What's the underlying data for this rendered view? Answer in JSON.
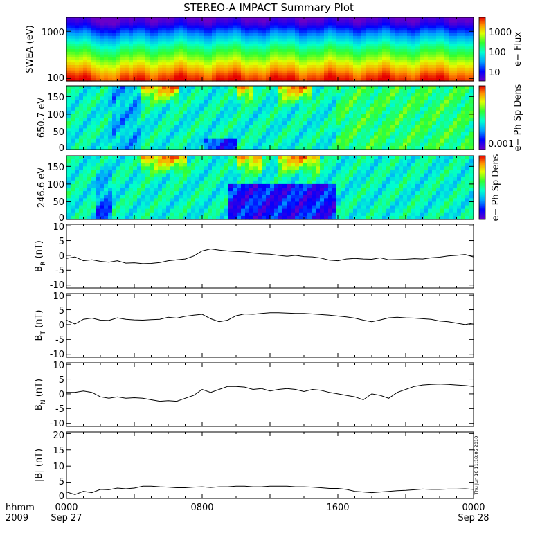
{
  "title": "STEREO-A IMPACT Summary Plot",
  "colors": {
    "background": "#ffffff",
    "axes": "#000000",
    "spectrogram_low": "#6a00c8",
    "spectrogram_high": "#e60000"
  },
  "footer": {
    "time_label": "hhmm",
    "year_label": "2009",
    "tick_labels": [
      "0000",
      "0800",
      "1600",
      "0000"
    ],
    "date_labels": [
      "Sep 27",
      "Sep 28"
    ]
  },
  "timestamp": "Thu Jun 10 11:18:05 2010",
  "panels": {
    "swea": {
      "ylabel": "SWEA (eV)",
      "y_ticks": [
        "1000",
        "100"
      ],
      "colorbar_label": "e− Flux",
      "colorbar_ticks": [
        "1000",
        "100",
        "10"
      ]
    },
    "pad650": {
      "ylabel": "650.7 eV",
      "y_ticks": [
        "150",
        "100",
        "50",
        "0"
      ],
      "colorbar_label": "e− Ph Sp Dens",
      "colorbar_ticks": [
        "0.001"
      ]
    },
    "pad246": {
      "ylabel": "246.6 eV",
      "y_ticks": [
        "150",
        "100",
        "50",
        "0"
      ],
      "colorbar_label": "e− Ph Sp Dens"
    },
    "br": {
      "ylabel_main": "B",
      "ylabel_sub": "R",
      "ylabel_unit": " (nT)",
      "y_ticks": [
        "10",
        "5",
        "0",
        "-5",
        "-10"
      ]
    },
    "bt": {
      "ylabel_main": "B",
      "ylabel_sub": "T",
      "ylabel_unit": " (nT)",
      "y_ticks": [
        "10",
        "5",
        "0",
        "-5",
        "-10"
      ]
    },
    "bn": {
      "ylabel_main": "B",
      "ylabel_sub": "N",
      "ylabel_unit": " (nT)",
      "y_ticks": [
        "10",
        "5",
        "0",
        "-5",
        "-10"
      ]
    },
    "bmag": {
      "ylabel": "|B| (nT)",
      "y_ticks": [
        "20",
        "15",
        "10",
        "5",
        "0"
      ]
    }
  },
  "chart_data": [
    {
      "type": "heatmap",
      "name": "SWEA e- Flux",
      "xlabel": "hhmm",
      "ylabel": "SWEA (eV)",
      "x_range_hours": [
        0,
        24
      ],
      "yscale": "log",
      "ylim": [
        90,
        2000
      ],
      "colorbar": {
        "label": "e- Flux",
        "scale": "log",
        "range": [
          3,
          3000
        ]
      },
      "energy_profile": [
        {
          "energy": 100,
          "flux": 2500
        },
        {
          "energy": 150,
          "flux": 1200
        },
        {
          "energy": 250,
          "flux": 400
        },
        {
          "energy": 400,
          "flux": 150
        },
        {
          "energy": 600,
          "flux": 60
        },
        {
          "energy": 1000,
          "flux": 15
        },
        {
          "energy": 1500,
          "flux": 5
        },
        {
          "energy": 2000,
          "flux": 3
        }
      ]
    },
    {
      "type": "heatmap",
      "name": "650.7 eV pitch angle",
      "ylabel": "650.7 eV",
      "x_range_hours": [
        0,
        24
      ],
      "ylim": [
        0,
        180
      ],
      "colorbar": {
        "label": "e- Ph Sp Dens",
        "scale": "log"
      },
      "notes": "high (red/yellow) near 150-180 deg in hours 4.5-6.5, 10-11, 12.5-14.5; low (blue) near 0-30 deg in hours 8-10"
    },
    {
      "type": "heatmap",
      "name": "246.6 eV pitch angle",
      "ylabel": "246.6 eV",
      "x_range_hours": [
        0,
        24
      ],
      "ylim": [
        0,
        180
      ],
      "colorbar": {
        "label": "e- Ph Sp Dens",
        "scale": "log"
      },
      "notes": "high near 150-180 deg in hours 4.5-7, 10-11.5, 12.5-15; low (blue) below 100 deg in hours 9.5-16"
    },
    {
      "type": "line",
      "name": "B_R",
      "ylim": [
        -11,
        10.5
      ],
      "x": [
        0,
        0.5,
        1,
        1.5,
        2,
        2.5,
        3,
        3.5,
        4,
        4.5,
        5,
        5.5,
        6,
        6.5,
        7,
        7.5,
        8,
        8.5,
        9,
        9.5,
        10,
        10.5,
        11,
        11.5,
        12,
        12.5,
        13,
        13.5,
        14,
        14.5,
        15,
        15.5,
        16,
        16.5,
        17,
        17.5,
        18,
        18.5,
        19,
        19.5,
        20,
        20.5,
        21,
        21.5,
        22,
        22.5,
        23,
        23.5,
        24
      ],
      "y": [
        -1,
        -0.5,
        -1.8,
        -1.5,
        -2,
        -2.3,
        -1.8,
        -2.6,
        -2.5,
        -2.8,
        -2.7,
        -2.4,
        -1.8,
        -1.5,
        -1.2,
        -0.2,
        1.5,
        2.2,
        1.8,
        1.5,
        1.3,
        1.2,
        0.8,
        0.5,
        0.4,
        0,
        -0.3,
        0,
        -0.4,
        -0.5,
        -0.9,
        -1.6,
        -1.8,
        -1.2,
        -1,
        -1.2,
        -1.3,
        -0.8,
        -1.5,
        -1.4,
        -1.3,
        -1.1,
        -1.2,
        -0.8,
        -0.6,
        -0.2,
        0,
        0.3,
        -0.5
      ]
    },
    {
      "type": "line",
      "name": "B_T",
      "ylim": [
        -11,
        10.5
      ],
      "x": [
        0,
        0.5,
        1,
        1.5,
        2,
        2.5,
        3,
        3.5,
        4,
        4.5,
        5,
        5.5,
        6,
        6.5,
        7,
        7.5,
        8,
        8.5,
        9,
        9.5,
        10,
        10.5,
        11,
        11.5,
        12,
        12.5,
        13,
        13.5,
        14,
        14.5,
        15,
        15.5,
        16,
        16.5,
        17,
        17.5,
        18,
        18.5,
        19,
        19.5,
        20,
        20.5,
        21,
        21.5,
        22,
        22.5,
        23,
        23.5,
        24
      ],
      "y": [
        1.5,
        0.2,
        1.8,
        2.2,
        1.5,
        1.4,
        2.3,
        1.8,
        1.6,
        1.5,
        1.7,
        1.8,
        2.5,
        2.2,
        2.8,
        3.2,
        3.5,
        2,
        1,
        1.5,
        3,
        3.6,
        3.5,
        3.8,
        4,
        4,
        3.9,
        3.8,
        3.8,
        3.6,
        3.4,
        3.2,
        2.9,
        2.6,
        2.2,
        1.5,
        1,
        1.6,
        2.3,
        2.5,
        2.3,
        2.2,
        2,
        1.8,
        1.2,
        1,
        0.5,
        0,
        0.5
      ]
    },
    {
      "type": "line",
      "name": "B_N",
      "ylim": [
        -11,
        10.5
      ],
      "x": [
        0,
        0.5,
        1,
        1.5,
        2,
        2.5,
        3,
        3.5,
        4,
        4.5,
        5,
        5.5,
        6,
        6.5,
        7,
        7.5,
        8,
        8.5,
        9,
        9.5,
        10,
        10.5,
        11,
        11.5,
        12,
        12.5,
        13,
        13.5,
        14,
        14.5,
        15,
        15.5,
        16,
        16.5,
        17,
        17.5,
        18,
        18.5,
        19,
        19.5,
        20,
        20.5,
        21,
        21.5,
        22,
        22.5,
        23,
        23.5,
        24
      ],
      "y": [
        0.5,
        0.5,
        1,
        0.5,
        -1,
        -1.5,
        -1,
        -1.5,
        -1.3,
        -1.5,
        -2,
        -2.5,
        -2.3,
        -2.5,
        -1.5,
        -0.5,
        1.5,
        0.5,
        1.5,
        2.5,
        2.5,
        2.3,
        1.5,
        1.8,
        1,
        1.5,
        1.8,
        1.5,
        0.8,
        1.5,
        1.2,
        0.5,
        0,
        -0.5,
        -1,
        -2,
        0,
        -0.5,
        -1.5,
        0.5,
        1.5,
        2.5,
        3,
        3.2,
        3.3,
        3.2,
        3,
        2.8,
        2.5
      ]
    },
    {
      "type": "line",
      "name": "|B|",
      "ylim": [
        0,
        20.5
      ],
      "x": [
        0,
        0.5,
        1,
        1.5,
        2,
        2.5,
        3,
        3.5,
        4,
        4.5,
        5,
        5.5,
        6,
        6.5,
        7,
        7.5,
        8,
        8.5,
        9,
        9.5,
        10,
        10.5,
        11,
        11.5,
        12,
        12.5,
        13,
        13.5,
        14,
        14.5,
        15,
        15.5,
        16,
        16.5,
        17,
        17.5,
        18,
        18.5,
        19,
        19.5,
        20,
        20.5,
        21,
        21.5,
        22,
        22.5,
        23,
        23.5,
        24
      ],
      "y": [
        2,
        1.2,
        2.2,
        1.8,
        2.8,
        2.7,
        3.2,
        3,
        3.2,
        3.8,
        3.8,
        3.6,
        3.5,
        3.3,
        3.3,
        3.5,
        3.6,
        3.4,
        3.6,
        3.6,
        3.8,
        3.8,
        3.6,
        3.6,
        3.8,
        3.8,
        3.8,
        3.6,
        3.6,
        3.5,
        3.3,
        3.1,
        3.1,
        2.8,
        2.2,
        2,
        1.8,
        2,
        2.2,
        2.4,
        2.5,
        2.7,
        2.9,
        2.8,
        2.8,
        2.9,
        2.9,
        3,
        2.8
      ]
    }
  ]
}
